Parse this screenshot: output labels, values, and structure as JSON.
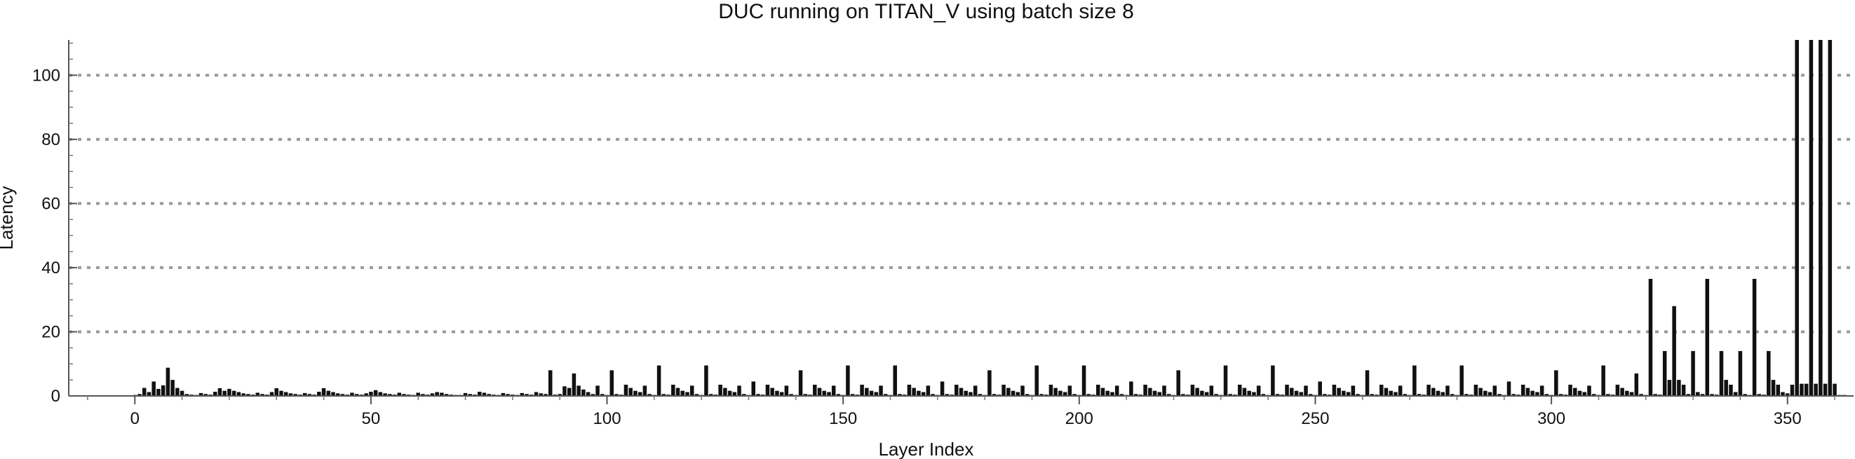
{
  "chart_data": {
    "type": "bar",
    "title": "DUC running on TITAN_V using batch size 8",
    "xlabel": "Layer Index",
    "ylabel": "Latency",
    "xlim": [
      -14,
      364
    ],
    "ylim": [
      0,
      111
    ],
    "xticks": [
      0,
      50,
      100,
      150,
      200,
      250,
      300,
      350
    ],
    "yticks": [
      0,
      20,
      40,
      60,
      80,
      100
    ],
    "grid": "horizontal dotted",
    "x_start": 0,
    "values": [
      0.3,
      0.6,
      2.5,
      1.2,
      4.5,
      2.2,
      3.3,
      8.8,
      5.0,
      2.5,
      1.6,
      0.6,
      0.4,
      0.3,
      0.9,
      0.6,
      0.4,
      1.3,
      2.4,
      1.6,
      2.2,
      1.6,
      1.2,
      0.8,
      0.6,
      0.4,
      1.0,
      0.6,
      0.4,
      1.2,
      2.4,
      1.6,
      1.2,
      0.8,
      0.6,
      0.4,
      0.9,
      0.6,
      0.4,
      1.3,
      2.4,
      1.6,
      1.2,
      0.8,
      0.6,
      0.4,
      1.0,
      0.6,
      0.4,
      0.8,
      1.3,
      1.8,
      1.2,
      0.8,
      0.6,
      0.4,
      1.0,
      0.6,
      0.4,
      0.3,
      1.0,
      0.6,
      0.4,
      0.8,
      1.2,
      1.0,
      0.6,
      0.4,
      0.3,
      0.3,
      0.9,
      0.6,
      0.4,
      1.3,
      1.0,
      0.6,
      0.4,
      0.3,
      0.9,
      0.6,
      0.4,
      0.3,
      0.9,
      0.6,
      0.4,
      1.2,
      0.8,
      0.6,
      8.0,
      0.4,
      0.6,
      3.0,
      2.5,
      7.0,
      3.2,
      2.0,
      1.2,
      0.6,
      3.2,
      0.6,
      0.3,
      8.0,
      0.6,
      0.4,
      3.5,
      2.5,
      1.6,
      1.2,
      3.2,
      0.6,
      0.3,
      9.5,
      0.6,
      0.4,
      3.5,
      2.5,
      1.6,
      1.2,
      3.2,
      0.6,
      0.3,
      9.5,
      0.6,
      0.4,
      3.5,
      2.5,
      1.6,
      1.2,
      3.2,
      0.6,
      0.3,
      4.5,
      0.6,
      0.4,
      3.5,
      2.5,
      1.6,
      1.2,
      3.2,
      0.6,
      0.3,
      8.0,
      0.6,
      0.4,
      3.5,
      2.5,
      1.6,
      1.2,
      3.2,
      0.6,
      0.3,
      9.5,
      0.6,
      0.4,
      3.5,
      2.5,
      1.6,
      1.2,
      3.2,
      0.6,
      0.3,
      9.5,
      0.6,
      0.4,
      3.5,
      2.5,
      1.6,
      1.2,
      3.2,
      0.6,
      0.3,
      4.5,
      0.6,
      0.4,
      3.5,
      2.5,
      1.6,
      1.2,
      3.2,
      0.6,
      0.3,
      8.0,
      0.6,
      0.4,
      3.5,
      2.5,
      1.6,
      1.2,
      3.2,
      0.6,
      0.3,
      9.5,
      0.6,
      0.4,
      3.5,
      2.5,
      1.6,
      1.2,
      3.2,
      0.6,
      0.3,
      9.5,
      0.6,
      0.4,
      3.5,
      2.5,
      1.6,
      1.2,
      3.2,
      0.6,
      0.3,
      4.5,
      0.6,
      0.4,
      3.5,
      2.5,
      1.6,
      1.2,
      3.2,
      0.6,
      0.3,
      8.0,
      0.6,
      0.4,
      3.5,
      2.5,
      1.6,
      1.2,
      3.2,
      0.6,
      0.3,
      9.5,
      0.6,
      0.4,
      3.5,
      2.5,
      1.6,
      1.2,
      3.2,
      0.6,
      0.3,
      9.5,
      0.6,
      0.4,
      3.5,
      2.5,
      1.6,
      1.2,
      3.2,
      0.6,
      0.3,
      4.5,
      0.6,
      0.4,
      3.5,
      2.5,
      1.6,
      1.2,
      3.2,
      0.6,
      0.3,
      8.0,
      0.6,
      0.4,
      3.5,
      2.5,
      1.6,
      1.2,
      3.2,
      0.6,
      0.3,
      9.5,
      0.6,
      0.4,
      3.5,
      2.5,
      1.6,
      1.2,
      3.2,
      0.6,
      0.3,
      9.5,
      0.6,
      0.4,
      3.5,
      2.5,
      1.6,
      1.2,
      3.2,
      0.6,
      0.3,
      4.5,
      0.6,
      0.4,
      3.5,
      2.5,
      1.6,
      1.2,
      3.2,
      0.6,
      0.3,
      8.0,
      0.6,
      0.4,
      3.5,
      2.5,
      1.6,
      1.2,
      3.2,
      0.6,
      0.3,
      9.5,
      0.6,
      0.4,
      3.5,
      2.5,
      1.6,
      1.2,
      7.0,
      0.6,
      0.3,
      36.5,
      0.6,
      0.4,
      14.0,
      5.0,
      28.0,
      5.0,
      3.5,
      0.6,
      14.0,
      1.2,
      0.6,
      36.5,
      0.6,
      0.4,
      14.0,
      5.0,
      3.5,
      1.2,
      14.0,
      0.6,
      0.3,
      36.5,
      0.6,
      0.4,
      14.0,
      5.0,
      3.5,
      1.2,
      0.8,
      3.5,
      111.0,
      3.8,
      3.8,
      111.0,
      3.8,
      111.0,
      3.8,
      111.0,
      3.8,
      0.3,
      0.3
    ]
  }
}
